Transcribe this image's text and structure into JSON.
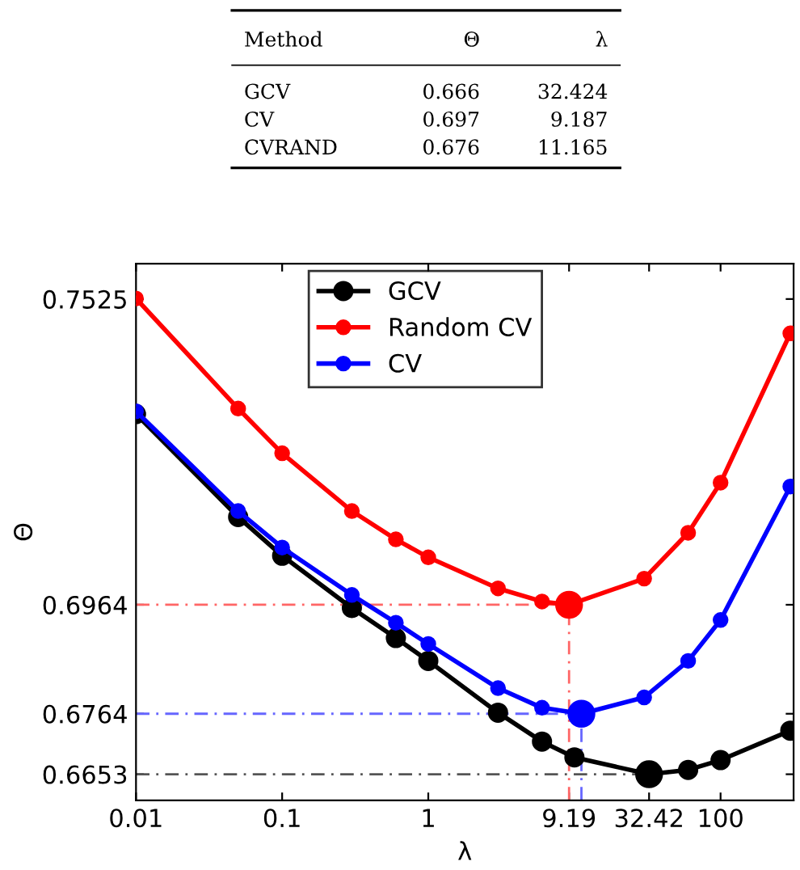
{
  "chart_data": {
    "type": "line",
    "xlabel": "λ",
    "ylabel": "Θ",
    "log": "x",
    "grid": false,
    "legend": "top",
    "marker": "circle",
    "line_style": "solid",
    "xlim": [
      0.01,
      316
    ],
    "xticks": [
      0.01,
      0.1,
      1,
      9.19,
      32.42,
      100
    ],
    "ylim": [
      0.6605,
      0.759
    ],
    "yticks": [
      0.6653,
      0.6764,
      0.6964,
      0.7525
    ],
    "annotations": [
      "Method",
      "Θ",
      "λ",
      "GCV",
      "0.666",
      "32.424",
      "CV",
      "0.697",
      "9.187",
      "CVRAND",
      "0.676",
      "11.165"
    ],
    "series": [
      {
        "name": "GCV",
        "color": "#000000",
        "x": [
          0.01,
          0.05,
          0.1,
          0.3,
          0.6,
          1,
          3,
          6,
          10,
          32.42,
          60,
          100,
          300
        ],
        "values": [
          0.7314,
          0.7125,
          0.7054,
          0.6958,
          0.6903,
          0.6861,
          0.6766,
          0.6713,
          0.6684,
          0.6653,
          0.6661,
          0.6679,
          0.6733
        ]
      },
      {
        "name": "Random CV",
        "color": "#ff0000",
        "x": [
          0.01,
          0.05,
          0.1,
          0.3,
          0.6,
          1,
          3,
          6,
          9.19,
          30,
          60,
          100,
          300
        ],
        "values": [
          0.7526,
          0.7324,
          0.7242,
          0.7136,
          0.7084,
          0.7051,
          0.6994,
          0.697,
          0.6964,
          0.7012,
          0.7096,
          0.7188,
          0.7462
        ]
      },
      {
        "name": "CV",
        "color": "#0000ff",
        "x": [
          0.01,
          0.05,
          0.1,
          0.3,
          0.6,
          1,
          3,
          6,
          11.165,
          30,
          60,
          100,
          300
        ],
        "values": [
          0.7319,
          0.7136,
          0.7069,
          0.6982,
          0.6931,
          0.6892,
          0.6811,
          0.6775,
          0.6764,
          0.6794,
          0.6861,
          0.6936,
          0.7181
        ]
      },
      {
        "type": "line",
        "color": "#555555",
        "line_style": "dashed",
        "marker": "none",
        "x": [
          0.01,
          32.42
        ],
        "values": [
          0.6653,
          0.6653
        ]
      },
      {
        "type": "line",
        "color": "#ff6666",
        "line_style": "dashed",
        "marker": "none",
        "x": [
          0.01,
          9.19
        ],
        "values": [
          0.6964,
          0.6964
        ]
      },
      {
        "type": "line",
        "color": "#ff6666",
        "line_style": "dashed",
        "marker": "none",
        "x": [
          9.19,
          9.19
        ],
        "values": [
          0.6605,
          0.6964
        ]
      },
      {
        "type": "line",
        "color": "#6666ff",
        "line_style": "dashed",
        "marker": "none",
        "x": [
          0.01,
          11.165
        ],
        "values": [
          0.6764,
          0.6764
        ]
      },
      {
        "type": "line",
        "color": "#6666ff",
        "line_style": "dashed",
        "marker": "none",
        "x": [
          11.165,
          11.165
        ],
        "values": [
          0.6605,
          0.6764
        ]
      },
      {
        "type": "scatter",
        "color": "#000000",
        "x": [
          32.42
        ],
        "values": [
          0.6653
        ]
      },
      {
        "type": "scatter",
        "color": "#ff0000",
        "x": [
          9.19
        ],
        "values": [
          0.6964
        ]
      },
      {
        "type": "scatter",
        "color": "#0000ff",
        "x": [
          11.165
        ],
        "values": [
          0.6764
        ]
      }
    ]
  }
}
